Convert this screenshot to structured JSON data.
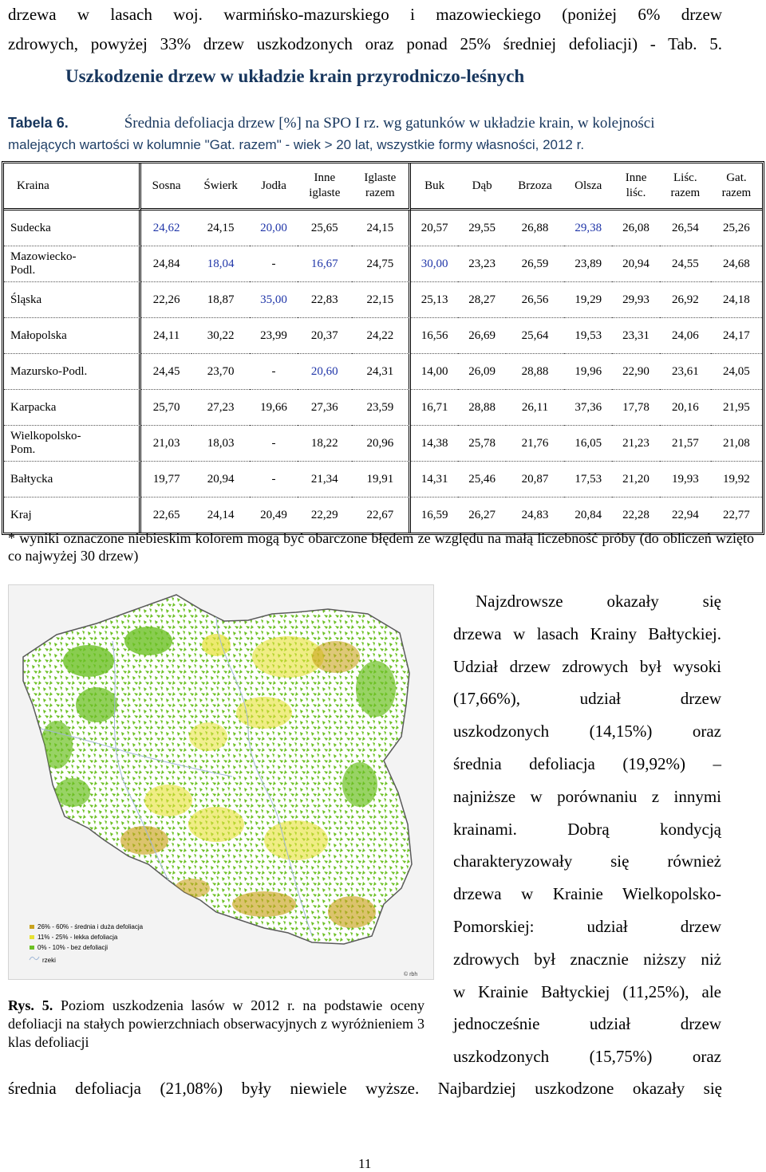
{
  "intro_lines": [
    "drzewa w lasach woj. warmińsko-mazurskiego i mazowieckiego (poniżej 6% drzew",
    "zdrowych, powyżej 33% drzew uszkodzonych oraz ponad 25% średniej defoliacji) - Tab. 5."
  ],
  "section_heading": "Uszkodzenie drzew w układzie krain przyrodniczo-leśnych",
  "table_caption": {
    "label": "Tabela 6.",
    "title": "Średnia defoliacja drzew [%] na SPO I rz. wg gatunków w układzie krain, w kolejności",
    "title_line2": "malejących wartości w kolumnie \"Gat. razem\" - wiek > 20 lat, wszystkie formy własności, 2012 r."
  },
  "table": {
    "headers": [
      "Kraina",
      "Sosna",
      "Świerk",
      "Jodła",
      [
        "Inne",
        "iglaste"
      ],
      [
        "Iglaste",
        "razem"
      ],
      "Buk",
      "Dąb",
      "Brzoza",
      "Olsza",
      [
        "Inne",
        "liśc."
      ],
      [
        "Liśc.",
        "razem"
      ],
      [
        "Gat.",
        "razem"
      ]
    ],
    "rows": [
      {
        "region": [
          "Sudecka"
        ],
        "values": [
          "24,62",
          "24,15",
          "20,00",
          "25,65",
          "24,15",
          "20,57",
          "29,55",
          "26,88",
          "29,38",
          "26,08",
          "26,54",
          "25,26"
        ],
        "blue": [
          0,
          2,
          8
        ]
      },
      {
        "region": [
          "Mazowiecko-",
          "Podl."
        ],
        "values": [
          "24,84",
          "18,04",
          "-",
          "16,67",
          "24,75",
          "30,00",
          "23,23",
          "26,59",
          "23,89",
          "20,94",
          "24,55",
          "24,68"
        ],
        "blue": [
          1,
          3,
          5
        ]
      },
      {
        "region": [
          "Śląska"
        ],
        "values": [
          "22,26",
          "18,87",
          "35,00",
          "22,83",
          "22,15",
          "25,13",
          "28,27",
          "26,56",
          "19,29",
          "29,93",
          "26,92",
          "24,18"
        ],
        "blue": [
          2
        ]
      },
      {
        "region": [
          "Małopolska"
        ],
        "values": [
          "24,11",
          "30,22",
          "23,99",
          "20,37",
          "24,22",
          "16,56",
          "26,69",
          "25,64",
          "19,53",
          "23,31",
          "24,06",
          "24,17"
        ],
        "blue": []
      },
      {
        "region": [
          "Mazursko-Podl."
        ],
        "values": [
          "24,45",
          "23,70",
          "-",
          "20,60",
          "24,31",
          "14,00",
          "26,09",
          "28,88",
          "19,96",
          "22,90",
          "23,61",
          "24,05"
        ],
        "blue": [
          3
        ]
      },
      {
        "region": [
          "Karpacka"
        ],
        "values": [
          "25,70",
          "27,23",
          "19,66",
          "27,36",
          "23,59",
          "16,71",
          "28,88",
          "26,11",
          "37,36",
          "17,78",
          "20,16",
          "21,95"
        ],
        "blue": []
      },
      {
        "region": [
          "Wielkopolsko-",
          "Pom."
        ],
        "values": [
          "21,03",
          "18,03",
          "-",
          "18,22",
          "20,96",
          "14,38",
          "25,78",
          "21,76",
          "16,05",
          "21,23",
          "21,57",
          "21,08"
        ],
        "blue": []
      },
      {
        "region": [
          "Bałtycka"
        ],
        "values": [
          "19,77",
          "20,94",
          "-",
          "21,34",
          "19,91",
          "14,31",
          "25,46",
          "20,87",
          "17,53",
          "21,20",
          "19,93",
          "19,92"
        ],
        "blue": []
      },
      {
        "region": [
          "Kraj"
        ],
        "values": [
          "22,65",
          "24,14",
          "20,49",
          "22,29",
          "22,67",
          "16,59",
          "26,27",
          "24,83",
          "20,84",
          "22,28",
          "22,94",
          "22,77"
        ],
        "blue": []
      }
    ]
  },
  "footnote": "* wyniki oznaczone niebieskim kolorem mogą być obarczone błędem ze względu na małą liczebność próby (do obliczeń wzięto co najwyżej 30 drzew)",
  "map": {
    "legend": [
      {
        "label": "26% - 60% - średnia i duża defoliacja",
        "color": "#c9a31e"
      },
      {
        "label": "11% - 25% - lekka defoliacja",
        "color": "#e6e133"
      },
      {
        "label": "0% - 10% - bez defoliacji",
        "color": "#6cc024"
      }
    ],
    "rivers_label": "rzeki",
    "credit": "© rbh"
  },
  "right_text_lines": [
    "Najzdrowsze okazały się",
    "drzewa w lasach Krainy Bałtyckiej.",
    "Udział drzew zdrowych był wysoki",
    "(17,66%), udział drzew",
    "uszkodzonych (14,15%) oraz",
    "średnia defoliacja (19,92%) –",
    "najniższe w porównaniu z innymi",
    "krainami. Dobrą kondycją",
    "charakteryzowały się również",
    "drzewa w Krainie Wielkopolsko-",
    "Pomorskiej: udział drzew",
    "zdrowych był znacznie niższy niż",
    "w Krainie Bałtyckiej (11,25%), ale",
    "jednocześnie udział drzew",
    "uszkodzonych (15,75%) oraz"
  ],
  "figure_caption": {
    "label": "Rys. 5.",
    "text": "Poziom uszkodzenia lasów w 2012 r. na podstawie oceny defoliacji na stałych powierzchniach obserwacyjnych z wyróżnieniem 3 klas defoliacji"
  },
  "bottom_text": "średnia defoliacja (21,08%) były niewiele wyższe. Najbardziej uszkodzone okazały się",
  "page_number": "11"
}
